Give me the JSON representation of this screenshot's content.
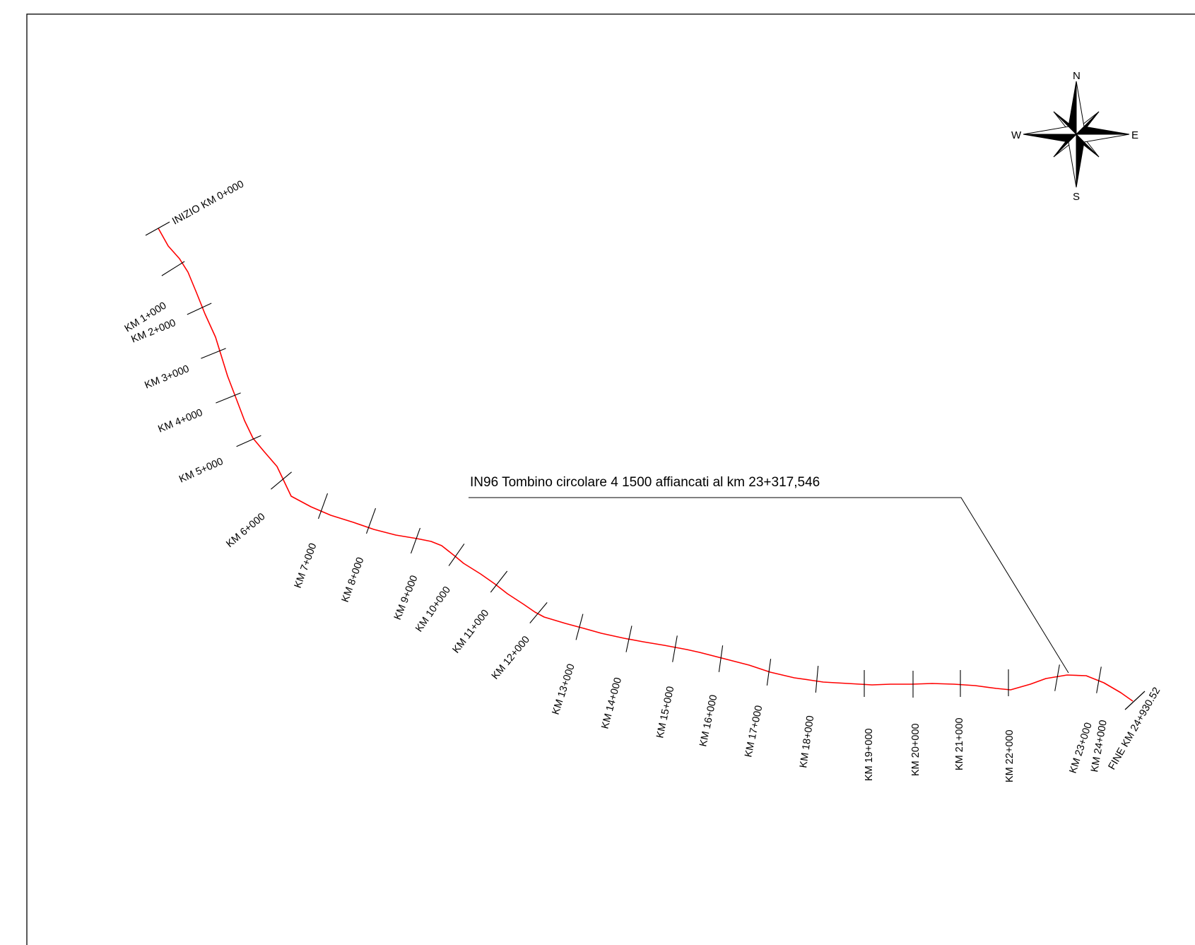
{
  "title": "",
  "route": {
    "start_label": "INIZIO KM 0+000",
    "end_label": "FINE KM 24+930.52",
    "color": "#ff0000",
    "stations": [
      "KM 1+000",
      "KM 2+000",
      "KM 3+000",
      "KM 4+000",
      "KM 5+000",
      "KM 6+000",
      "KM 7+000",
      "KM 8+000",
      "KM 9+000",
      "KM 10+000",
      "KM 11+000",
      "KM 12+000",
      "KM 13+000",
      "KM 14+000",
      "KM 15+000",
      "KM 16+000",
      "KM 17+000",
      "KM 18+000",
      "KM 19+000",
      "KM 20+000",
      "KM 21+000",
      "KM 22+000",
      "KM 23+000",
      "KM 24+000"
    ]
  },
  "callout": {
    "text": "IN96  Tombino circolare 4  1500 affiancati al km 23+317,546"
  },
  "compass": {
    "north": "N",
    "south": "S",
    "east": "E",
    "west": "W",
    "icon": "compass-rose-icon"
  }
}
